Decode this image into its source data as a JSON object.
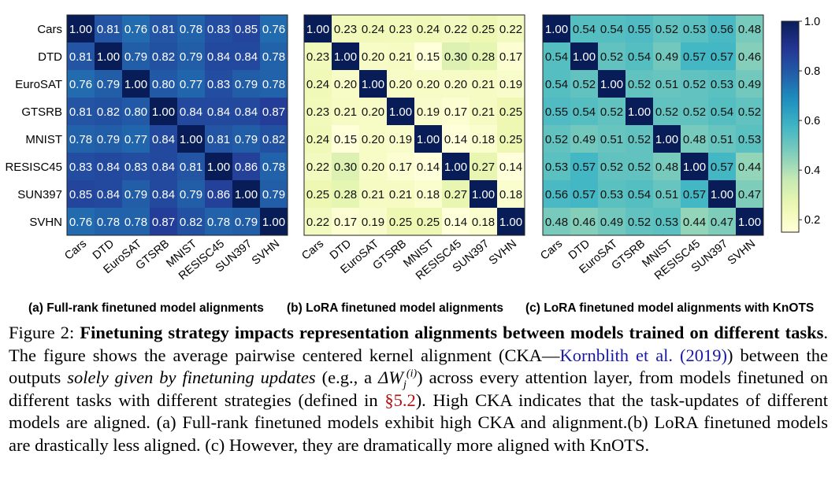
{
  "figure": {
    "colorbar": {
      "ticks": [
        "1.0",
        "0.8",
        "0.6",
        "0.4",
        "0.2"
      ]
    },
    "panels": [
      {
        "id": "a",
        "label": "(a)",
        "subtitle": "Full-rank finetuned model alignments"
      },
      {
        "id": "b",
        "label": "(b)",
        "subtitle": "LoRA finetuned model alignments"
      },
      {
        "id": "c",
        "label": "(c)",
        "subtitle": "LoRA finetuned model alignments with KnOTS"
      }
    ]
  },
  "chart_data": [
    {
      "type": "heatmap",
      "panel": "(a)",
      "title": "Full-rank finetuned model alignments",
      "rows": [
        "Cars",
        "DTD",
        "EuroSAT",
        "GTSRB",
        "MNIST",
        "RESISC45",
        "SUN397",
        "SVHN"
      ],
      "cols": [
        "Cars",
        "DTD",
        "EuroSAT",
        "GTSRB",
        "MNIST",
        "RESISC45",
        "SUN397",
        "SVHN"
      ],
      "values": [
        [
          1.0,
          0.81,
          0.76,
          0.81,
          0.78,
          0.83,
          0.85,
          0.76
        ],
        [
          0.81,
          1.0,
          0.79,
          0.82,
          0.79,
          0.84,
          0.84,
          0.78
        ],
        [
          0.76,
          0.79,
          1.0,
          0.8,
          0.77,
          0.83,
          0.79,
          0.78
        ],
        [
          0.81,
          0.82,
          0.8,
          1.0,
          0.84,
          0.84,
          0.84,
          0.87
        ],
        [
          0.78,
          0.79,
          0.77,
          0.84,
          1.0,
          0.81,
          0.79,
          0.82
        ],
        [
          0.83,
          0.84,
          0.83,
          0.84,
          0.81,
          1.0,
          0.86,
          0.78
        ],
        [
          0.85,
          0.84,
          0.79,
          0.84,
          0.79,
          0.86,
          1.0,
          0.79
        ],
        [
          0.76,
          0.78,
          0.78,
          0.87,
          0.82,
          0.78,
          0.79,
          1.0
        ]
      ],
      "colorbar_range": [
        0.15,
        1.0
      ]
    },
    {
      "type": "heatmap",
      "panel": "(b)",
      "title": "LoRA finetuned model alignments",
      "rows": [
        "Cars",
        "DTD",
        "EuroSAT",
        "GTSRB",
        "MNIST",
        "RESISC45",
        "SUN397",
        "SVHN"
      ],
      "cols": [
        "Cars",
        "DTD",
        "EuroSAT",
        "GTSRB",
        "MNIST",
        "RESISC45",
        "SUN397",
        "SVHN"
      ],
      "values": [
        [
          1.0,
          0.23,
          0.24,
          0.23,
          0.24,
          0.22,
          0.25,
          0.22
        ],
        [
          0.23,
          1.0,
          0.2,
          0.21,
          0.15,
          0.3,
          0.28,
          0.17
        ],
        [
          0.24,
          0.2,
          1.0,
          0.2,
          0.2,
          0.2,
          0.21,
          0.19
        ],
        [
          0.23,
          0.21,
          0.2,
          1.0,
          0.19,
          0.17,
          0.21,
          0.25
        ],
        [
          0.24,
          0.15,
          0.2,
          0.19,
          1.0,
          0.14,
          0.18,
          0.25
        ],
        [
          0.22,
          0.3,
          0.2,
          0.17,
          0.14,
          1.0,
          0.27,
          0.14
        ],
        [
          0.25,
          0.28,
          0.21,
          0.21,
          0.18,
          0.27,
          1.0,
          0.18
        ],
        [
          0.22,
          0.17,
          0.19,
          0.25,
          0.25,
          0.14,
          0.18,
          1.0
        ]
      ],
      "colorbar_range": [
        0.15,
        1.0
      ]
    },
    {
      "type": "heatmap",
      "panel": "(c)",
      "title": "LoRA finetuned model alignments with KnOTS",
      "rows": [
        "Cars",
        "DTD",
        "EuroSAT",
        "GTSRB",
        "MNIST",
        "RESISC45",
        "SUN397",
        "SVHN"
      ],
      "cols": [
        "Cars",
        "DTD",
        "EuroSAT",
        "GTSRB",
        "MNIST",
        "RESISC45",
        "SUN397",
        "SVHN"
      ],
      "values": [
        [
          1.0,
          0.54,
          0.54,
          0.55,
          0.52,
          0.53,
          0.56,
          0.48
        ],
        [
          0.54,
          1.0,
          0.52,
          0.54,
          0.49,
          0.57,
          0.57,
          0.46
        ],
        [
          0.54,
          0.52,
          1.0,
          0.52,
          0.51,
          0.52,
          0.53,
          0.49
        ],
        [
          0.55,
          0.54,
          0.52,
          1.0,
          0.52,
          0.52,
          0.54,
          0.52
        ],
        [
          0.52,
          0.49,
          0.51,
          0.52,
          1.0,
          0.48,
          0.51,
          0.53
        ],
        [
          0.53,
          0.57,
          0.52,
          0.52,
          0.48,
          1.0,
          0.57,
          0.44
        ],
        [
          0.56,
          0.57,
          0.53,
          0.54,
          0.51,
          0.57,
          1.0,
          0.47
        ],
        [
          0.48,
          0.46,
          0.49,
          0.52,
          0.53,
          0.44,
          0.47,
          1.0
        ]
      ],
      "colorbar_range": [
        0.15,
        1.0
      ]
    }
  ],
  "caption": {
    "label": "Figure 2:",
    "bold_title": "Finetuning strategy impacts representation alignments between models trained on different tasks",
    "text_1": ". The figure shows the average pairwise centered kernel alignment (CKA—",
    "citation": "Kornblith et al. (2019)",
    "text_2": ") between the outputs ",
    "emphasis": "solely given by finetuning updates",
    "text_3": " (e.g., a ",
    "math_delta": "ΔW",
    "math_sup": "(i)",
    "math_sub": "j",
    "text_4": ") across every attention layer, from models finetuned on different tasks with different strategies (defined in ",
    "section_ref": "§5.2",
    "text_5": "). High CKA indicates that the task-updates of different models are aligned. (a) Full-rank finetuned models exhibit high CKA and alignment.(b) LoRA finetuned models are drastically less aligned. (c) However, they are dramatically more aligned with KnOTS."
  }
}
